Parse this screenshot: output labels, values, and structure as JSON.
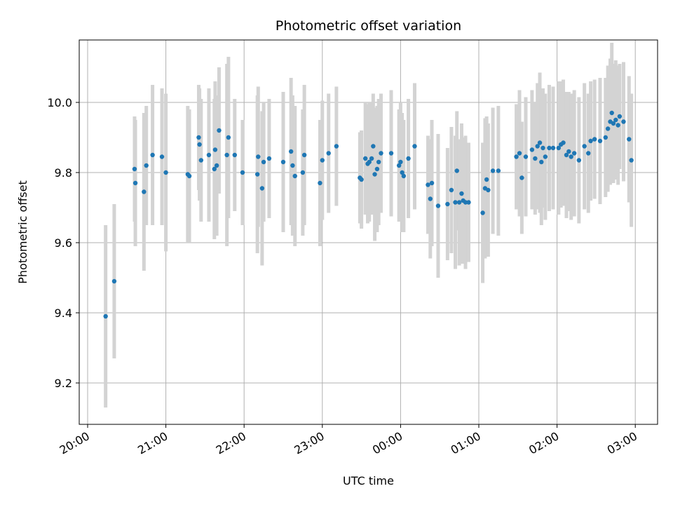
{
  "chart_data": {
    "type": "scatter",
    "title": "Photometric offset variation",
    "xlabel": "UTC time",
    "ylabel": "Photometric offset",
    "x_ticks": [
      {
        "t": 0,
        "label": "20:00"
      },
      {
        "t": 1,
        "label": "21:00"
      },
      {
        "t": 2,
        "label": "22:00"
      },
      {
        "t": 3,
        "label": "23:00"
      },
      {
        "t": 4,
        "label": "00:00"
      },
      {
        "t": 5,
        "label": "01:00"
      },
      {
        "t": 6,
        "label": "02:00"
      },
      {
        "t": 7,
        "label": "03:00"
      }
    ],
    "y_ticks": [
      9.2,
      9.4,
      9.6,
      9.8,
      10.0
    ],
    "xlim": [
      -0.1,
      7.3
    ],
    "ylim": [
      9.08,
      10.18
    ],
    "grid": true,
    "point_color": "#1f77b4",
    "errorbar_color": "#d3d3d3",
    "series": [
      {
        "points": [
          [
            0.23,
            9.39,
            0.26
          ],
          [
            0.34,
            9.49,
            0.22
          ],
          [
            0.6,
            9.81,
            0.15
          ],
          [
            0.61,
            9.77,
            0.18
          ],
          [
            0.72,
            9.745,
            0.225
          ],
          [
            0.75,
            9.82,
            0.17
          ],
          [
            0.83,
            9.85,
            0.2
          ],
          [
            0.95,
            9.845,
            0.195
          ],
          [
            1.0,
            9.8,
            0.225
          ],
          [
            1.28,
            9.795,
            0.195
          ],
          [
            1.3,
            9.79,
            0.19
          ],
          [
            1.42,
            9.9,
            0.15
          ],
          [
            1.43,
            9.88,
            0.16
          ],
          [
            1.45,
            9.835,
            0.175
          ],
          [
            1.55,
            9.85,
            0.19
          ],
          [
            1.62,
            9.81,
            0.2
          ],
          [
            1.63,
            9.865,
            0.195
          ],
          [
            1.65,
            9.82,
            0.2
          ],
          [
            1.68,
            9.92,
            0.18
          ],
          [
            1.78,
            9.85,
            0.26
          ],
          [
            1.8,
            9.9,
            0.23
          ],
          [
            1.88,
            9.85,
            0.16
          ],
          [
            1.98,
            9.8,
            0.15
          ],
          [
            2.17,
            9.795,
            0.225
          ],
          [
            2.18,
            9.845,
            0.2
          ],
          [
            2.23,
            9.755,
            0.22
          ],
          [
            2.25,
            9.83,
            0.17
          ],
          [
            2.32,
            9.84,
            0.17
          ],
          [
            2.5,
            9.83,
            0.2
          ],
          [
            2.6,
            9.86,
            0.21
          ],
          [
            2.62,
            9.82,
            0.2
          ],
          [
            2.65,
            9.79,
            0.2
          ],
          [
            2.75,
            9.8,
            0.18
          ],
          [
            2.77,
            9.85,
            0.2
          ],
          [
            2.97,
            9.77,
            0.18
          ],
          [
            3.0,
            9.835,
            0.17
          ],
          [
            3.08,
            9.855,
            0.17
          ],
          [
            3.18,
            9.875,
            0.17
          ],
          [
            3.48,
            9.785,
            0.13
          ],
          [
            3.5,
            9.78,
            0.14
          ],
          [
            3.55,
            9.84,
            0.16
          ],
          [
            3.58,
            9.825,
            0.17
          ],
          [
            3.6,
            9.83,
            0.17
          ],
          [
            3.63,
            9.84,
            0.16
          ],
          [
            3.65,
            9.875,
            0.15
          ],
          [
            3.67,
            9.795,
            0.19
          ],
          [
            3.7,
            9.81,
            0.18
          ],
          [
            3.72,
            9.83,
            0.18
          ],
          [
            3.75,
            9.855,
            0.17
          ],
          [
            3.88,
            9.855,
            0.18
          ],
          [
            3.98,
            9.82,
            0.16
          ],
          [
            4.0,
            9.83,
            0.17
          ],
          [
            4.02,
            9.8,
            0.17
          ],
          [
            4.04,
            9.79,
            0.16
          ],
          [
            4.1,
            9.84,
            0.17
          ],
          [
            4.18,
            9.875,
            0.18
          ],
          [
            4.35,
            9.765,
            0.14
          ],
          [
            4.38,
            9.725,
            0.17
          ],
          [
            4.4,
            9.77,
            0.18
          ],
          [
            4.48,
            9.705,
            0.205
          ],
          [
            4.6,
            9.71,
            0.16
          ],
          [
            4.65,
            9.75,
            0.18
          ],
          [
            4.7,
            9.715,
            0.19
          ],
          [
            4.72,
            9.805,
            0.17
          ],
          [
            4.75,
            9.715,
            0.18
          ],
          [
            4.78,
            9.74,
            0.2
          ],
          [
            4.8,
            9.72,
            0.18
          ],
          [
            4.83,
            9.715,
            0.19
          ],
          [
            4.87,
            9.715,
            0.17
          ],
          [
            5.05,
            9.685,
            0.2
          ],
          [
            5.08,
            9.755,
            0.2
          ],
          [
            5.1,
            9.78,
            0.18
          ],
          [
            5.12,
            9.75,
            0.19
          ],
          [
            5.18,
            9.805,
            0.18
          ],
          [
            5.25,
            9.805,
            0.185
          ],
          [
            5.48,
            9.845,
            0.15
          ],
          [
            5.52,
            9.855,
            0.18
          ],
          [
            5.55,
            9.785,
            0.16
          ],
          [
            5.6,
            9.845,
            0.17
          ],
          [
            5.68,
            9.865,
            0.17
          ],
          [
            5.72,
            9.84,
            0.16
          ],
          [
            5.75,
            9.875,
            0.18
          ],
          [
            5.78,
            9.885,
            0.2
          ],
          [
            5.8,
            9.83,
            0.18
          ],
          [
            5.82,
            9.87,
            0.17
          ],
          [
            5.85,
            9.845,
            0.18
          ],
          [
            5.9,
            9.87,
            0.18
          ],
          [
            5.95,
            9.87,
            0.175
          ],
          [
            6.02,
            9.87,
            0.19
          ],
          [
            6.05,
            9.88,
            0.18
          ],
          [
            6.08,
            9.885,
            0.18
          ],
          [
            6.12,
            9.85,
            0.18
          ],
          [
            6.15,
            9.86,
            0.17
          ],
          [
            6.18,
            9.845,
            0.18
          ],
          [
            6.22,
            9.855,
            0.18
          ],
          [
            6.28,
            9.835,
            0.18
          ],
          [
            6.35,
            9.875,
            0.18
          ],
          [
            6.4,
            9.855,
            0.17
          ],
          [
            6.43,
            9.89,
            0.17
          ],
          [
            6.48,
            9.895,
            0.17
          ],
          [
            6.55,
            9.89,
            0.18
          ],
          [
            6.62,
            9.9,
            0.17
          ],
          [
            6.65,
            9.925,
            0.18
          ],
          [
            6.68,
            9.945,
            0.18
          ],
          [
            6.7,
            9.97,
            0.2
          ],
          [
            6.72,
            9.94,
            0.17
          ],
          [
            6.75,
            9.95,
            0.17
          ],
          [
            6.78,
            9.935,
            0.17
          ],
          [
            6.8,
            9.96,
            0.15
          ],
          [
            6.85,
            9.945,
            0.17
          ],
          [
            6.92,
            9.895,
            0.18
          ],
          [
            6.95,
            9.835,
            0.19
          ]
        ]
      }
    ]
  }
}
